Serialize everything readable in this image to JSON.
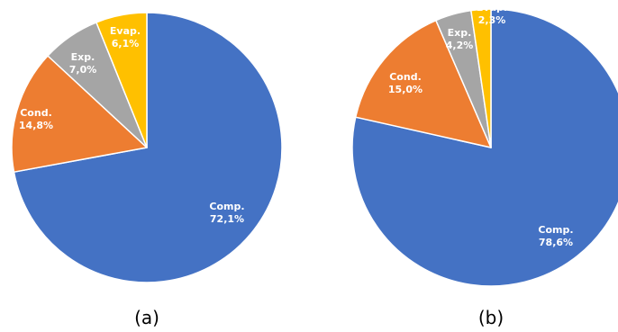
{
  "chart_data": [
    {
      "type": "pie",
      "caption": "(a)",
      "start_angle_deg": 0,
      "direction": "clockwise",
      "slices": [
        {
          "label": "Comp.",
          "value_label": "72,1%",
          "value": 72.1,
          "color": "#4472C4"
        },
        {
          "label": "Cond.",
          "value_label": "14,8%",
          "value": 14.8,
          "color": "#ED7D31"
        },
        {
          "label": "Exp.",
          "value_label": "7,0%",
          "value": 7.0,
          "color": "#A5A5A5"
        },
        {
          "label": "Evap.",
          "value_label": "6,1%",
          "value": 6.1,
          "color": "#FFC000"
        }
      ]
    },
    {
      "type": "pie",
      "caption": "(b)",
      "start_angle_deg": 0,
      "direction": "clockwise",
      "slices": [
        {
          "label": "Comp.",
          "value_label": "78,6%",
          "value": 78.6,
          "color": "#4472C4"
        },
        {
          "label": "Cond.",
          "value_label": "15,0%",
          "value": 15.0,
          "color": "#ED7D31"
        },
        {
          "label": "Exp.",
          "value_label": "4,2%",
          "value": 4.2,
          "color": "#A5A5A5"
        },
        {
          "label": "Evap.",
          "value_label": "2,3%",
          "value": 2.3,
          "color": "#FFC000"
        }
      ]
    }
  ]
}
